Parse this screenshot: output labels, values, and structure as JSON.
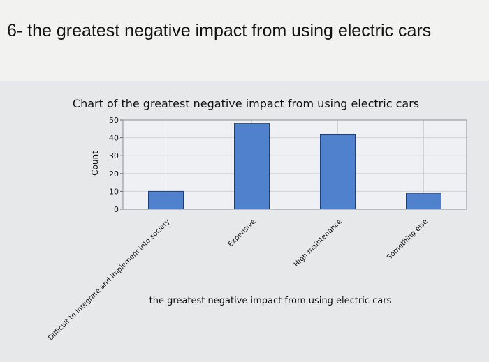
{
  "page": {
    "heading": "6- the greatest negative impact from using electric cars"
  },
  "chart_data": {
    "type": "bar",
    "title": "Chart of the greatest negative impact from using electric cars",
    "xlabel": "the greatest negative impact from using electric cars",
    "ylabel": "Count",
    "categories": [
      "Difficult to integrate and implement into society",
      "Expensive",
      "High maintenance",
      "Something else"
    ],
    "values": [
      10,
      48,
      42,
      9
    ],
    "ylim": [
      0,
      50
    ],
    "yticks": [
      0,
      10,
      20,
      30,
      40,
      50
    ],
    "grid": true,
    "bar_color": "#4f81cc",
    "bar_edge_color": "#1f3f7a"
  }
}
